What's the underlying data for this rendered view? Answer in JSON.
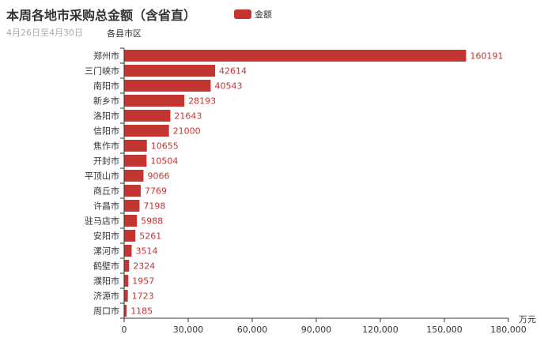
{
  "chart_data": {
    "type": "bar",
    "orientation": "horizontal",
    "title": "本周各地市采购总金额（含省直）",
    "subtitle": "4月26日至4月30日",
    "ylabel": "各县市区",
    "xlabel": "万元",
    "legend": {
      "entries": [
        "金额"
      ],
      "position": "top"
    },
    "categories": [
      "郑州市",
      "三门峡市",
      "南阳市",
      "新乡市",
      "洛阳市",
      "信阳市",
      "焦作市",
      "开封市",
      "平顶山市",
      "商丘市",
      "许昌市",
      "驻马店市",
      "安阳市",
      "漯河市",
      "鹤壁市",
      "濮阳市",
      "济源市",
      "周口市"
    ],
    "series": [
      {
        "name": "金额",
        "values": [
          160191,
          42614,
          40543,
          28193,
          21643,
          21000,
          10655,
          10504,
          9066,
          7769,
          7198,
          5988,
          5261,
          3514,
          2324,
          1957,
          1723,
          1185
        ],
        "color": "#c23531"
      }
    ],
    "xlim": [
      0,
      180000
    ],
    "xticks": [
      "0",
      "30,000",
      "60,000",
      "90,000",
      "120,000",
      "150,000",
      "180,000"
    ],
    "grid": false,
    "data_labels": true
  }
}
